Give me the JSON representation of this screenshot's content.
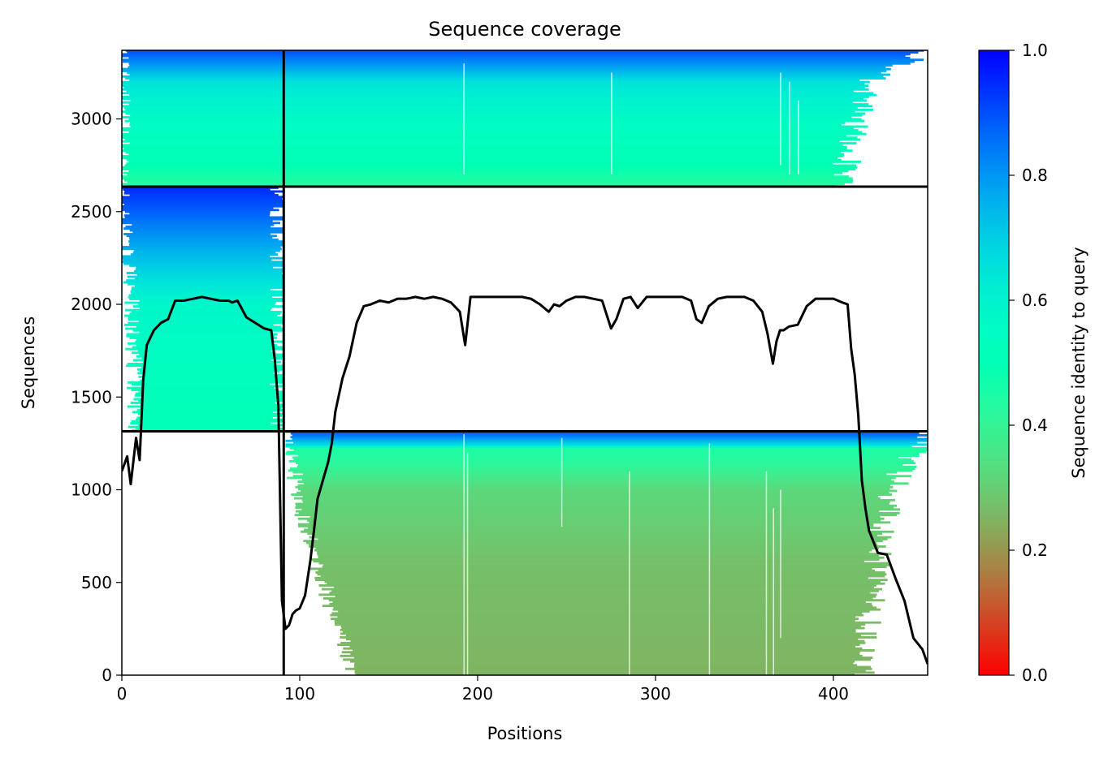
{
  "chart_data": {
    "type": "heatmap",
    "title": "Sequence coverage",
    "xlabel": "Positions",
    "ylabel": "Sequences",
    "xlim": [
      0,
      453
    ],
    "ylim": [
      0,
      3370
    ],
    "xticks": [
      0,
      100,
      200,
      300,
      400
    ],
    "yticks": [
      0,
      500,
      1000,
      1500,
      2000,
      2500,
      3000
    ],
    "colorbar": {
      "label": "Sequence identity to query",
      "range": [
        0.0,
        1.0
      ],
      "ticks": [
        "0.0",
        "0.2",
        "0.4",
        "0.6",
        "0.8",
        "1.0"
      ],
      "colormap": "rainbow_r"
    },
    "separators": {
      "vertical_x": [
        91
      ],
      "horizontal_y": [
        1315,
        2635
      ]
    },
    "blocks": [
      {
        "name": "bottom",
        "x_start": 92,
        "x_end": 453,
        "y_start": 0,
        "y_end": 1315,
        "stops": [
          [
            0,
            0.25
          ],
          [
            600,
            0.27
          ],
          [
            1000,
            0.32
          ],
          [
            1150,
            0.42
          ],
          [
            1225,
            0.45
          ],
          [
            1240,
            0.65
          ],
          [
            1280,
            0.8
          ],
          [
            1315,
            0.9
          ]
        ],
        "left_edge": [
          [
            0,
            130
          ],
          [
            300,
            120
          ],
          [
            600,
            110
          ],
          [
            900,
            100
          ],
          [
            1150,
            96
          ],
          [
            1230,
            94
          ],
          [
            1315,
            92
          ]
        ],
        "right_edge": [
          [
            0,
            415
          ],
          [
            300,
            420
          ],
          [
            600,
            425
          ],
          [
            900,
            430
          ],
          [
            1150,
            440
          ],
          [
            1230,
            450
          ],
          [
            1315,
            453
          ]
        ]
      },
      {
        "name": "middle",
        "x_start": 0,
        "x_end": 91,
        "y_start": 1315,
        "y_end": 2635,
        "stops": [
          [
            1315,
            0.5
          ],
          [
            1700,
            0.54
          ],
          [
            2000,
            0.58
          ],
          [
            2200,
            0.7
          ],
          [
            2400,
            0.82
          ],
          [
            2635,
            0.95
          ]
        ],
        "left_edge": [
          [
            1315,
            8
          ],
          [
            2000,
            6
          ],
          [
            2300,
            2
          ],
          [
            2635,
            0
          ]
        ],
        "right_edge": [
          [
            1315,
            91
          ],
          [
            2635,
            91
          ]
        ]
      },
      {
        "name": "top",
        "x_start": 0,
        "x_end": 453,
        "y_start": 2635,
        "y_end": 3370,
        "stops": [
          [
            2635,
            0.42
          ],
          [
            2750,
            0.5
          ],
          [
            3000,
            0.56
          ],
          [
            3200,
            0.65
          ],
          [
            3260,
            0.75
          ],
          [
            3370,
            0.9
          ]
        ],
        "left_edge": [
          [
            2635,
            0
          ],
          [
            3370,
            0
          ]
        ],
        "right_edge": [
          [
            2635,
            405
          ],
          [
            2900,
            410
          ],
          [
            3200,
            420
          ],
          [
            3370,
            453
          ]
        ]
      }
    ],
    "coverage_line": {
      "x": [
        0,
        3,
        5,
        8,
        10,
        12,
        14,
        18,
        22,
        26,
        30,
        35,
        40,
        45,
        50,
        55,
        60,
        62,
        65,
        70,
        75,
        80,
        84,
        86,
        88,
        90,
        92,
        94,
        96,
        98,
        100,
        103,
        106,
        108,
        110,
        113,
        116,
        118,
        120,
        124,
        128,
        132,
        136,
        140,
        145,
        150,
        155,
        160,
        165,
        170,
        175,
        180,
        185,
        190,
        193,
        196,
        200,
        205,
        210,
        215,
        220,
        225,
        230,
        235,
        240,
        243,
        246,
        250,
        255,
        260,
        265,
        270,
        275,
        278,
        282,
        286,
        290,
        295,
        300,
        305,
        310,
        315,
        320,
        323,
        326,
        330,
        335,
        340,
        345,
        350,
        355,
        360,
        363,
        366,
        368,
        370,
        372,
        375,
        380,
        385,
        390,
        395,
        400,
        405,
        408,
        410,
        412,
        414,
        416,
        418,
        420,
        425,
        430,
        435,
        440,
        445,
        450,
        453
      ],
      "y": [
        1100,
        1180,
        1030,
        1280,
        1160,
        1590,
        1780,
        1860,
        1900,
        1920,
        2020,
        2020,
        2030,
        2040,
        2030,
        2020,
        2020,
        2010,
        2020,
        1930,
        1900,
        1870,
        1860,
        1700,
        1450,
        400,
        250,
        270,
        330,
        350,
        360,
        430,
        620,
        780,
        950,
        1050,
        1150,
        1250,
        1420,
        1600,
        1720,
        1900,
        1990,
        2000,
        2020,
        2010,
        2030,
        2030,
        2040,
        2030,
        2040,
        2030,
        2010,
        1960,
        1780,
        2040,
        2040,
        2040,
        2040,
        2040,
        2040,
        2040,
        2030,
        2000,
        1960,
        2000,
        1990,
        2020,
        2040,
        2040,
        2030,
        2020,
        1870,
        1920,
        2030,
        2040,
        1980,
        2040,
        2040,
        2040,
        2040,
        2040,
        2020,
        1920,
        1900,
        1990,
        2030,
        2040,
        2040,
        2040,
        2020,
        1960,
        1840,
        1680,
        1800,
        1860,
        1860,
        1880,
        1890,
        1990,
        2030,
        2030,
        2030,
        2010,
        2000,
        1760,
        1620,
        1400,
        1050,
        900,
        780,
        660,
        650,
        520,
        400,
        200,
        140,
        60
      ]
    }
  }
}
